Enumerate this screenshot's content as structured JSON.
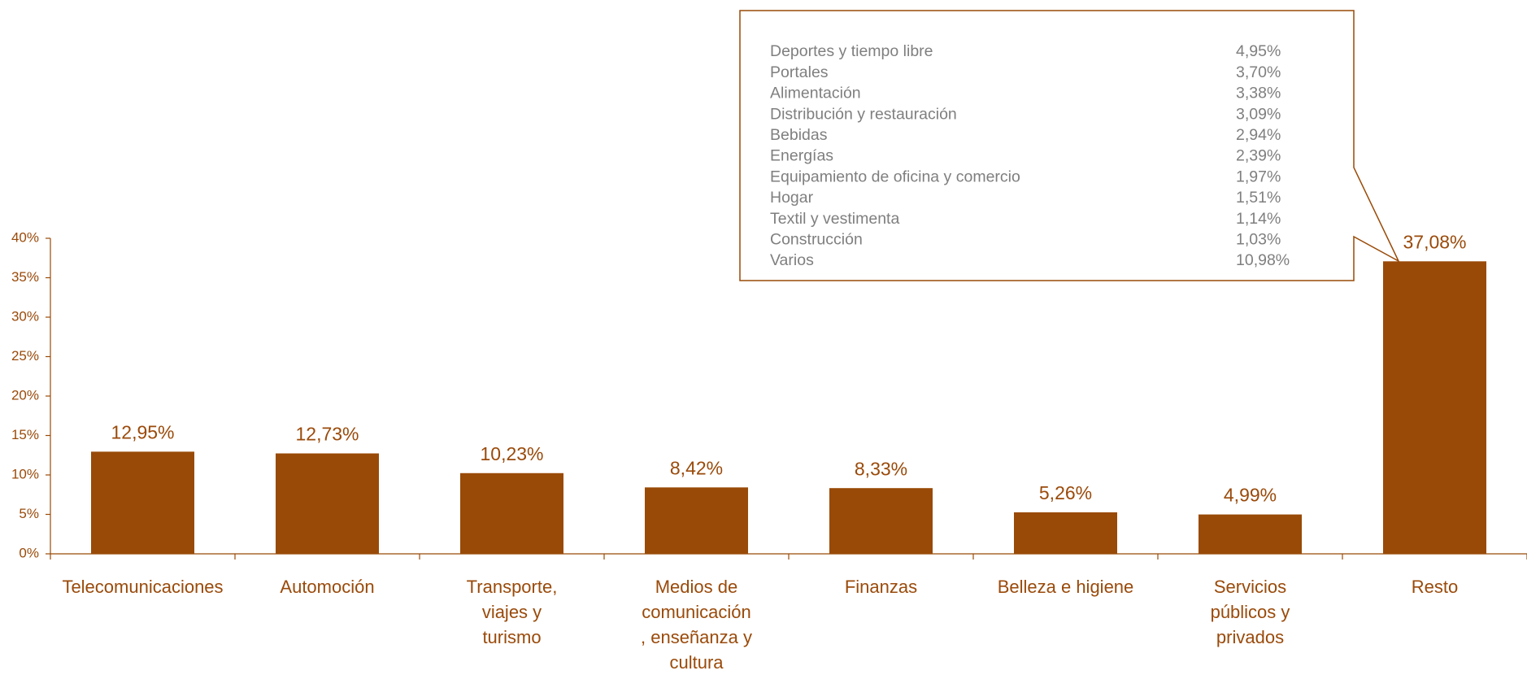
{
  "chart_data": {
    "type": "bar",
    "categories": [
      "Telecomunicaciones",
      "Automoción",
      "Transporte,\nviajes y\nturismo",
      "Medios de\ncomunicación\n, enseñanza y\ncultura",
      "Finanzas",
      "Belleza e higiene",
      "Servicios\npúblicos y\nprivados",
      "Resto"
    ],
    "values": [
      12.95,
      12.73,
      10.23,
      8.42,
      8.33,
      5.26,
      4.99,
      37.08
    ],
    "value_labels": [
      "12,95%",
      "12,73%",
      "10,23%",
      "8,42%",
      "8,33%",
      "5,26%",
      "4,99%",
      "37,08%"
    ],
    "color": "#994a07",
    "ylim": [
      0,
      40
    ],
    "yticks": [
      {
        "value": 0,
        "label": "0%"
      },
      {
        "value": 5,
        "label": "5%"
      },
      {
        "value": 10,
        "label": "10%"
      },
      {
        "value": 15,
        "label": "15%"
      },
      {
        "value": 20,
        "label": "20%"
      },
      {
        "value": 25,
        "label": "25%"
      },
      {
        "value": 30,
        "label": "30%"
      },
      {
        "value": 35,
        "label": "35%"
      },
      {
        "value": 40,
        "label": "40%"
      }
    ],
    "breakdown": {
      "names": [
        "Deportes y tiempo libre",
        "Portales",
        "Alimentación",
        "Distribución y restauración",
        "Bebidas",
        "Energías",
        "Equipamiento de oficina y comercio",
        "Hogar",
        "Textil y vestimenta",
        "Construcción",
        "Varios"
      ],
      "labels": [
        "4,95%",
        "3,70%",
        "3,38%",
        "3,09%",
        "2,94%",
        "2,39%",
        "1,97%",
        "1,51%",
        "1,14%",
        "1,03%",
        "10,98%"
      ]
    }
  }
}
